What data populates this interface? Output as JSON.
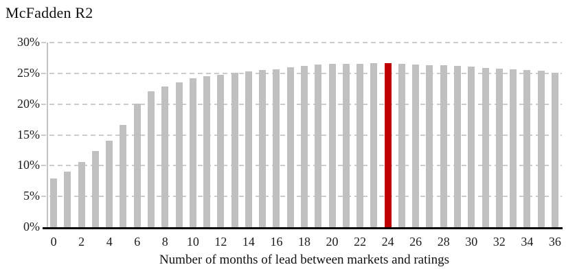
{
  "chart_data": {
    "type": "bar",
    "title": "McFadden R2",
    "xlabel": "Number of months of lead between markets and ratings",
    "ylabel": "",
    "categories": [
      0,
      1,
      2,
      3,
      4,
      5,
      6,
      7,
      8,
      9,
      10,
      11,
      12,
      13,
      14,
      15,
      16,
      17,
      18,
      19,
      20,
      21,
      22,
      23,
      24,
      25,
      26,
      27,
      28,
      29,
      30,
      31,
      32,
      33,
      34,
      35,
      36
    ],
    "values": [
      7.9,
      9.0,
      10.6,
      12.4,
      14.0,
      16.6,
      20.1,
      22.1,
      22.9,
      23.5,
      24.2,
      24.5,
      24.8,
      25.1,
      25.3,
      25.5,
      25.7,
      26.0,
      26.2,
      26.4,
      26.5,
      26.6,
      26.6,
      26.7,
      26.7,
      26.5,
      26.4,
      26.3,
      26.3,
      26.2,
      26.1,
      25.9,
      25.8,
      25.6,
      25.5,
      25.4,
      25.1
    ],
    "values_unit": "%",
    "highlight_index": 24,
    "bar_color": "#c0c0c0",
    "highlight_color": "#c00000",
    "ylim": [
      0,
      30
    ],
    "ytick_step": 5,
    "ytick_values": [
      0,
      5,
      10,
      15,
      20,
      25,
      30
    ],
    "ytick_labels": [
      "0%",
      "5%",
      "10%",
      "15%",
      "20%",
      "25%",
      "30%"
    ],
    "xtick_values": [
      0,
      2,
      4,
      6,
      8,
      10,
      12,
      14,
      16,
      18,
      20,
      22,
      24,
      26,
      28,
      30,
      32,
      34,
      36
    ],
    "xtick_labels": [
      "0",
      "2",
      "4",
      "6",
      "8",
      "10",
      "12",
      "14",
      "16",
      "18",
      "20",
      "22",
      "24",
      "26",
      "28",
      "30",
      "32",
      "34",
      "36"
    ],
    "grid": "horizontal-dashed",
    "legend": "none",
    "gridline_color": "#cbcbcb",
    "axis_line_color": "#000000",
    "y_axis_line_color": "#c3c3c3"
  }
}
